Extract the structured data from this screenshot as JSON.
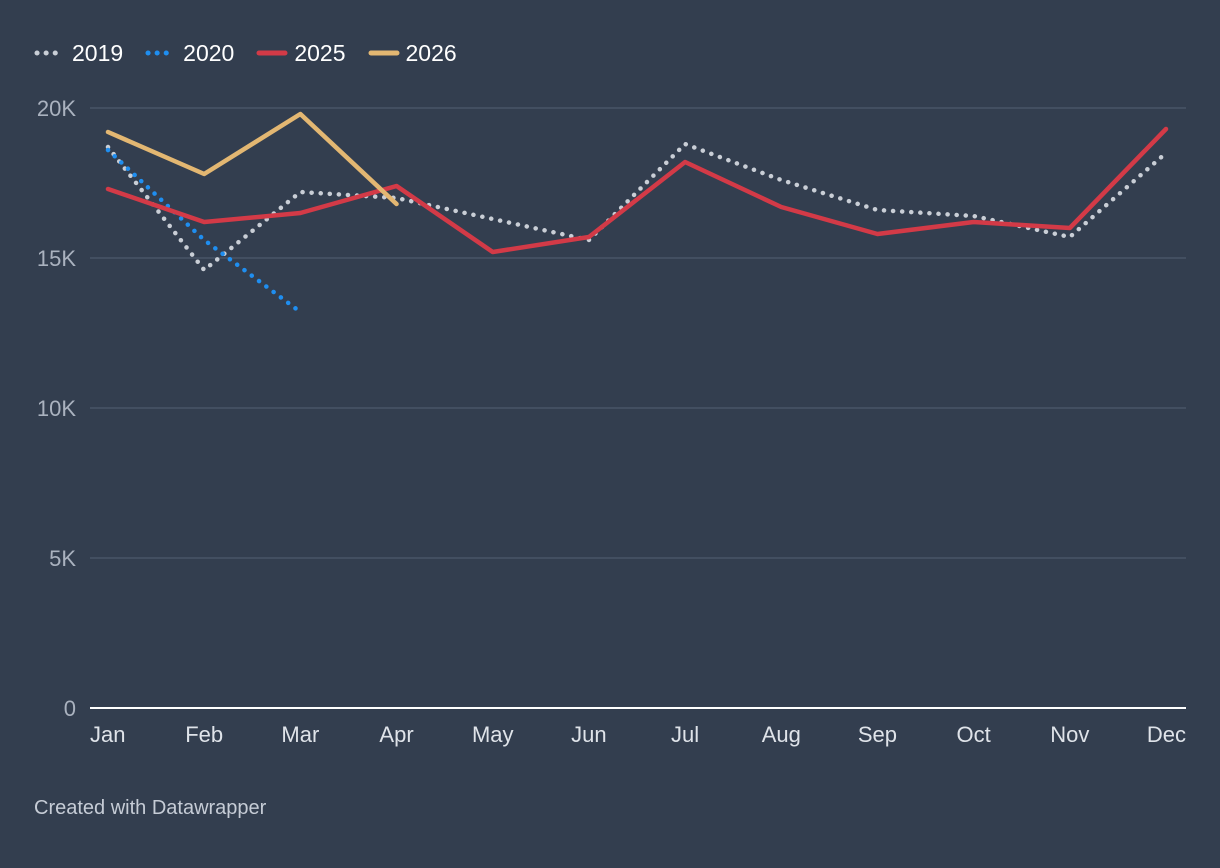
{
  "chart_data": {
    "type": "line",
    "categories": [
      "Jan",
      "Feb",
      "Mar",
      "Apr",
      "May",
      "Jun",
      "Jul",
      "Aug",
      "Sep",
      "Oct",
      "Nov",
      "Dec"
    ],
    "y_ticks": [
      {
        "value": 0,
        "label": "0"
      },
      {
        "value": 5000,
        "label": "5K"
      },
      {
        "value": 10000,
        "label": "10K"
      },
      {
        "value": 15000,
        "label": "15K"
      },
      {
        "value": 20000,
        "label": "20K"
      }
    ],
    "ylim": [
      0,
      20000
    ],
    "grid": true,
    "legend_position": "top-left",
    "series": [
      {
        "name": "2019",
        "style": "dotted",
        "color": "#c9ced6",
        "values": [
          18700,
          14600,
          17200,
          17000,
          16300,
          15600,
          18800,
          17600,
          16600,
          16400,
          15700,
          18500
        ]
      },
      {
        "name": "2020",
        "style": "dotted",
        "color": "#1f8ef0",
        "values": [
          18600,
          15600,
          13200,
          null,
          null,
          null,
          null,
          null,
          null,
          null,
          null,
          null
        ]
      },
      {
        "name": "2025",
        "style": "solid",
        "color": "#d33a47",
        "values": [
          17300,
          16200,
          16500,
          17400,
          15200,
          15700,
          18200,
          16700,
          15800,
          16200,
          16000,
          19300
        ]
      },
      {
        "name": "2026",
        "style": "solid",
        "color": "#e3b772",
        "values": [
          19200,
          17800,
          19800,
          16800,
          null,
          null,
          null,
          null,
          null,
          null,
          null,
          null
        ]
      }
    ]
  },
  "footer": {
    "credit": "Created with Datawrapper"
  }
}
